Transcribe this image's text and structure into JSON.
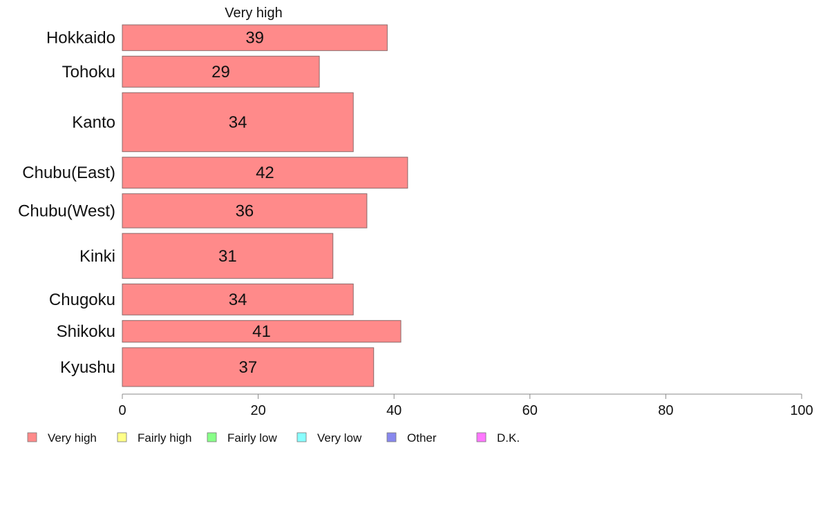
{
  "chart_data": {
    "type": "bar",
    "orientation": "horizontal",
    "panel_title": "Very high",
    "categories": [
      "Hokkaido",
      "Tohoku",
      "Kanto",
      "Chubu(East)",
      "Chubu(West)",
      "Kinki",
      "Chugoku",
      "Shikoku",
      "Kyushu"
    ],
    "values": [
      39,
      29,
      34,
      42,
      36,
      31,
      34,
      41,
      37
    ],
    "bar_widths_relative": [
      0.83,
      1.0,
      1.9,
      1.0,
      1.1,
      1.45,
      1.0,
      0.7,
      1.25
    ],
    "xlim": [
      0,
      100
    ],
    "xticks": [
      0,
      20,
      40,
      60,
      80,
      100
    ],
    "grid": false,
    "bar_color": "#ff8a8a",
    "legend": {
      "placement": "bottom-left",
      "items": [
        {
          "label": "Very high",
          "color": "#ff8a8a"
        },
        {
          "label": "Fairly high",
          "color": "#ffff88"
        },
        {
          "label": "Fairly low",
          "color": "#88ff88"
        },
        {
          "label": "Very low",
          "color": "#88ffff"
        },
        {
          "label": "Other",
          "color": "#8888ee"
        },
        {
          "label": "D.K.",
          "color": "#ff77ff"
        }
      ]
    }
  }
}
